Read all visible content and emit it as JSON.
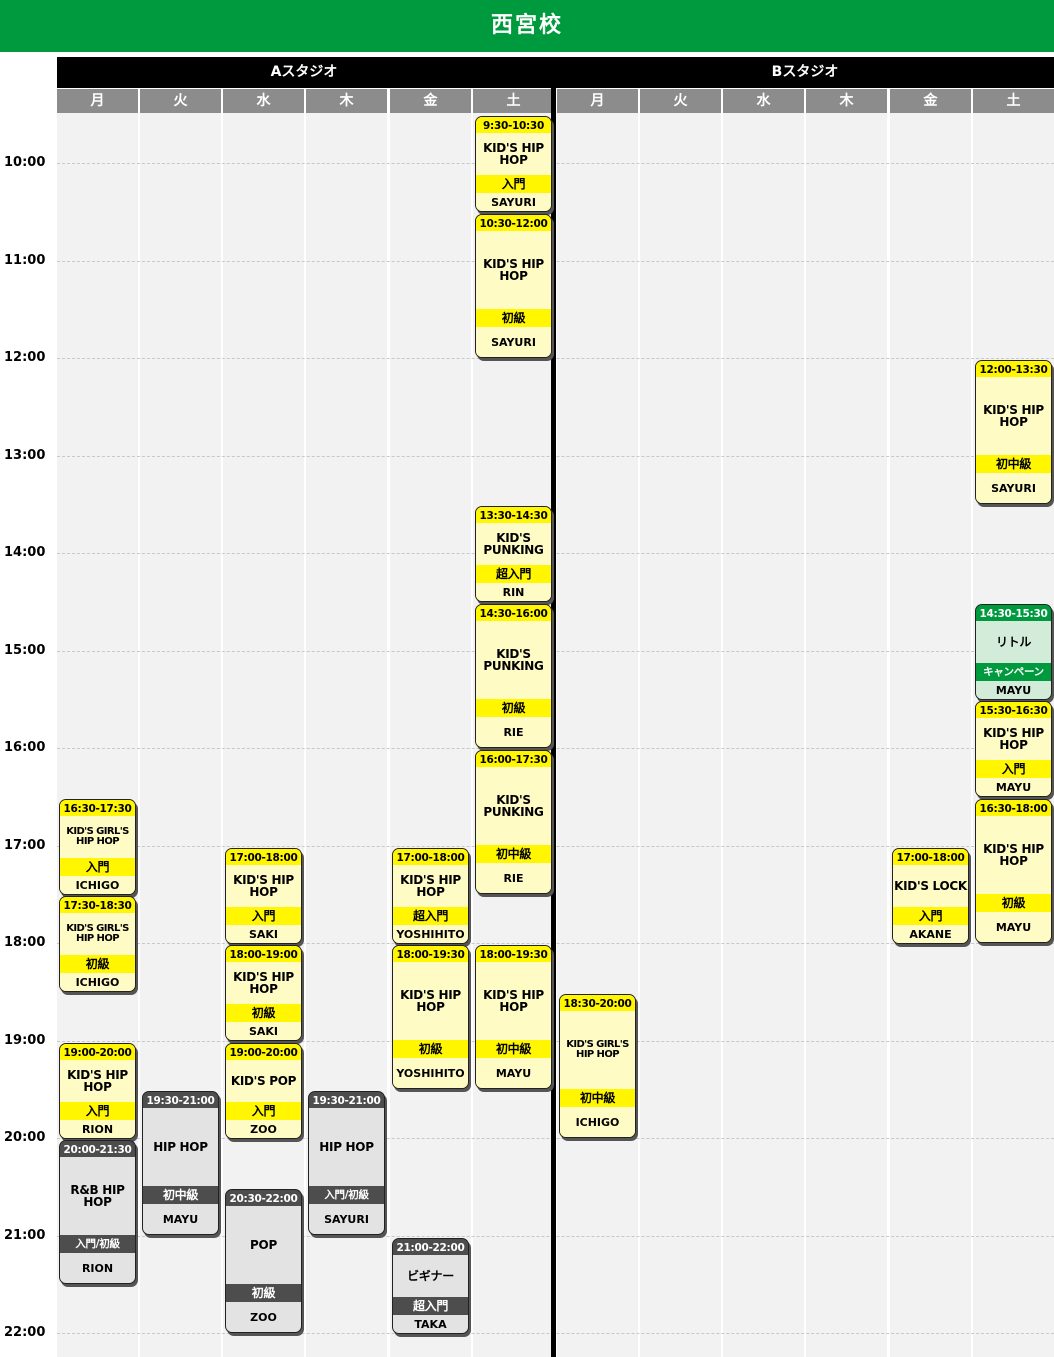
{
  "page": {
    "title": "西宮校"
  },
  "studios": [
    {
      "name": "Aスタジオ"
    },
    {
      "name": "Bスタジオ"
    }
  ],
  "days": [
    "月",
    "火",
    "水",
    "木",
    "金",
    "土",
    "月",
    "火",
    "水",
    "木",
    "金",
    "土"
  ],
  "hours": [
    "10:00",
    "11:00",
    "12:00",
    "13:00",
    "14:00",
    "15:00",
    "16:00",
    "17:00",
    "18:00",
    "19:00",
    "20:00",
    "21:00",
    "22:00"
  ],
  "colors": {
    "banner": "#009a3e",
    "kids_yellow": "#fff600",
    "kids_light": "#fffbc4",
    "adult_gray": "#4d4d4d",
    "adult_light": "#e3e3e3",
    "campaign_green": "#009a3e",
    "campaign_light": "#d2ecd9"
  },
  "classes": [
    {
      "studio": "A",
      "day": "月",
      "time": "16:30-17:30",
      "name": "KID'S GIRL'S HIP HOP",
      "level": "入門",
      "instructor": "ICHIGO",
      "type": "kids"
    },
    {
      "studio": "A",
      "day": "月",
      "time": "17:30-18:30",
      "name": "KID'S GIRL'S HIP HOP",
      "level": "初級",
      "instructor": "ICHIGO",
      "type": "kids"
    },
    {
      "studio": "A",
      "day": "月",
      "time": "19:00-20:00",
      "name": "KID'S HIP HOP",
      "level": "入門",
      "instructor": "RION",
      "type": "kids"
    },
    {
      "studio": "A",
      "day": "月",
      "time": "20:00-21:30",
      "name": "R&B HIP HOP",
      "level": "入門/初級",
      "instructor": "RION",
      "type": "adult"
    },
    {
      "studio": "A",
      "day": "火",
      "time": "19:30-21:00",
      "name": "HIP HOP",
      "level": "初中級",
      "instructor": "MAYU",
      "type": "adult"
    },
    {
      "studio": "A",
      "day": "水",
      "time": "17:00-18:00",
      "name": "KID'S HIP HOP",
      "level": "入門",
      "instructor": "SAKI",
      "type": "kids"
    },
    {
      "studio": "A",
      "day": "水",
      "time": "18:00-19:00",
      "name": "KID'S HIP HOP",
      "level": "初級",
      "instructor": "SAKI",
      "type": "kids"
    },
    {
      "studio": "A",
      "day": "水",
      "time": "19:00-20:00",
      "name": "KID'S POP",
      "level": "入門",
      "instructor": "ZOO",
      "type": "kids"
    },
    {
      "studio": "A",
      "day": "水",
      "time": "20:30-22:00",
      "name": "POP",
      "level": "初級",
      "instructor": "ZOO",
      "type": "adult"
    },
    {
      "studio": "A",
      "day": "木",
      "time": "19:30-21:00",
      "name": "HIP HOP",
      "level": "入門/初級",
      "instructor": "SAYURI",
      "type": "adult"
    },
    {
      "studio": "A",
      "day": "金",
      "time": "17:00-18:00",
      "name": "KID'S HIP HOP",
      "level": "超入門",
      "instructor": "YOSHIHITO",
      "type": "kids"
    },
    {
      "studio": "A",
      "day": "金",
      "time": "18:00-19:30",
      "name": "KID'S HIP HOP",
      "level": "初級",
      "instructor": "YOSHIHITO",
      "type": "kids"
    },
    {
      "studio": "A",
      "day": "金",
      "time": "21:00-22:00",
      "name": "ビギナー",
      "level": "超入門",
      "instructor": "TAKA",
      "type": "adult"
    },
    {
      "studio": "A",
      "day": "土",
      "time": "9:30-10:30",
      "name": "KID'S HIP HOP",
      "level": "入門",
      "instructor": "SAYURI",
      "type": "kids"
    },
    {
      "studio": "A",
      "day": "土",
      "time": "10:30-12:00",
      "name": "KID'S HIP HOP",
      "level": "初級",
      "instructor": "SAYURI",
      "type": "kids"
    },
    {
      "studio": "A",
      "day": "土",
      "time": "13:30-14:30",
      "name": "KID'S PUNKING",
      "level": "超入門",
      "instructor": "RIN",
      "type": "kids"
    },
    {
      "studio": "A",
      "day": "土",
      "time": "14:30-16:00",
      "name": "KID'S PUNKING",
      "level": "初級",
      "instructor": "RIE",
      "type": "kids"
    },
    {
      "studio": "A",
      "day": "土",
      "time": "16:00-17:30",
      "name": "KID'S PUNKING",
      "level": "初中級",
      "instructor": "RIE",
      "type": "kids"
    },
    {
      "studio": "A",
      "day": "土",
      "time": "18:00-19:30",
      "name": "KID'S HIP HOP",
      "level": "初中級",
      "instructor": "MAYU",
      "type": "kids"
    },
    {
      "studio": "B",
      "day": "月",
      "time": "18:30-20:00",
      "name": "KID'S GIRL'S HIP HOP",
      "level": "初中級",
      "instructor": "ICHIGO",
      "type": "kids"
    },
    {
      "studio": "B",
      "day": "金",
      "time": "17:00-18:00",
      "name": "KID'S LOCK",
      "level": "入門",
      "instructor": "AKANE",
      "type": "kids"
    },
    {
      "studio": "B",
      "day": "土",
      "time": "12:00-13:30",
      "name": "KID'S HIP HOP",
      "level": "初中級",
      "instructor": "SAYURI",
      "type": "kids"
    },
    {
      "studio": "B",
      "day": "土",
      "time": "14:30-15:30",
      "name": "リトル",
      "level": "キャンペーン",
      "instructor": "MAYU",
      "type": "campaign"
    },
    {
      "studio": "B",
      "day": "土",
      "time": "15:30-16:30",
      "name": "KID'S HIP HOP",
      "level": "入門",
      "instructor": "MAYU",
      "type": "kids"
    },
    {
      "studio": "B",
      "day": "土",
      "time": "16:30-18:00",
      "name": "KID'S HIP HOP",
      "level": "初級",
      "instructor": "MAYU",
      "type": "kids"
    }
  ]
}
